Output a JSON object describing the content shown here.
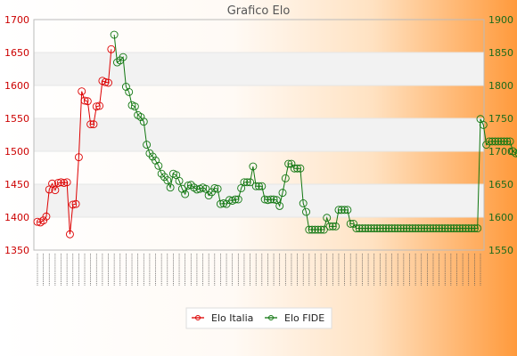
{
  "colors": {
    "italia": "#dd0000",
    "fide": "#117711",
    "band": "#f2f2f2",
    "grid": "#e6e6e6"
  },
  "chart_data": {
    "type": "line",
    "title": "Grafico Elo",
    "x_tick_labels": "illegible rotated date labels",
    "y_left": {
      "lim": [
        1350,
        1700
      ],
      "ticks": [
        1350,
        1400,
        1450,
        1500,
        1550,
        1600,
        1650,
        1700
      ]
    },
    "y_right": {
      "lim": [
        1550,
        1900
      ],
      "ticks": [
        1550,
        1600,
        1650,
        1700,
        1750,
        1800,
        1850,
        1900
      ]
    },
    "grid": true,
    "legend_position": "bottom",
    "series": [
      {
        "name": "Elo Italia",
        "axis": "left",
        "values": [
          1393,
          1392,
          1395,
          1401,
          1442,
          1451,
          1441,
          1452,
          1453,
          1452,
          1453,
          1374,
          1419,
          1420,
          1491,
          1591,
          1577,
          1576,
          1541,
          1541,
          1568,
          1569,
          1607,
          1605,
          1604,
          1655
        ]
      },
      {
        "name": "Elo FIDE",
        "axis": "right",
        "values": [
          1877,
          1835,
          1838,
          1843,
          1798,
          1790,
          1770,
          1768,
          1755,
          1752,
          1745,
          1710,
          1697,
          1692,
          1686,
          1678,
          1666,
          1661,
          1656,
          1645,
          1666,
          1664,
          1655,
          1643,
          1635,
          1648,
          1649,
          1645,
          1642,
          1643,
          1645,
          1643,
          1633,
          1638,
          1644,
          1643,
          1620,
          1621,
          1620,
          1626,
          1625,
          1627,
          1627,
          1644,
          1653,
          1653,
          1653,
          1677,
          1647,
          1647,
          1647,
          1627,
          1626,
          1627,
          1627,
          1626,
          1617,
          1637,
          1659,
          1681,
          1681,
          1674,
          1674,
          1674,
          1621,
          1608,
          1581,
          1581,
          1581,
          1581,
          1581,
          1581,
          1599,
          1586,
          1586,
          1586,
          1611,
          1611,
          1611,
          1611,
          1590,
          1590,
          1583,
          1583,
          1583,
          1583,
          1583,
          1583,
          1583,
          1583,
          1583,
          1583,
          1583,
          1583,
          1583,
          1583,
          1583,
          1583,
          1583,
          1583,
          1583,
          1583,
          1583,
          1583,
          1583,
          1583,
          1583,
          1583,
          1583,
          1583,
          1583,
          1583,
          1583,
          1583,
          1583,
          1583,
          1583,
          1583,
          1583,
          1583,
          1583,
          1583,
          1583,
          1583,
          1749,
          1740,
          1710,
          1715,
          1715,
          1715,
          1715,
          1715,
          1715,
          1715,
          1715,
          1700,
          1697,
          1697,
          1697,
          1697,
          1697,
          1697,
          1697,
          1697,
          1697,
          1697,
          1697
        ]
      }
    ]
  }
}
